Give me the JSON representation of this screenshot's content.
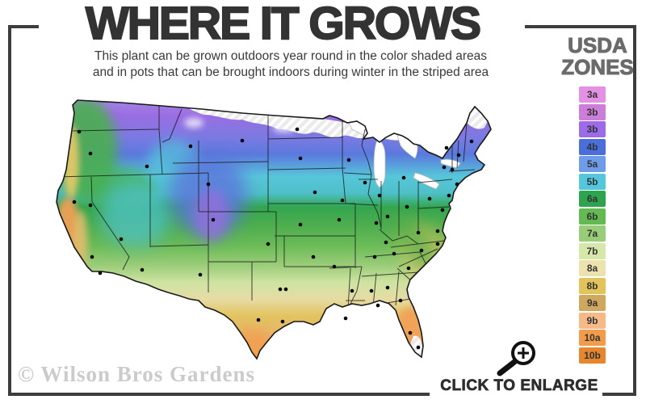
{
  "header": {
    "title": "WHERE IT GROWS",
    "subtitle_line1": "This plant can be grown outdoors year round in the color shaded areas",
    "subtitle_line2": "and in pots that can be brought indoors during winter in the striped area"
  },
  "legend": {
    "title_line1": "USDA",
    "title_line2": "ZONES",
    "zones": [
      {
        "label": "3a",
        "color": "#e391e3"
      },
      {
        "label": "3b",
        "color": "#cd7ed8"
      },
      {
        "label": "3b",
        "color": "#9c6bea"
      },
      {
        "label": "4b",
        "color": "#4a6edb"
      },
      {
        "label": "5a",
        "color": "#6f9ce9"
      },
      {
        "label": "5b",
        "color": "#54c7dd"
      },
      {
        "label": "6a",
        "color": "#2fa44f"
      },
      {
        "label": "6b",
        "color": "#64ba52"
      },
      {
        "label": "7a",
        "color": "#99cc78"
      },
      {
        "label": "7b",
        "color": "#d6e7aa"
      },
      {
        "label": "8a",
        "color": "#ece2ad"
      },
      {
        "label": "8b",
        "color": "#e3c35c"
      },
      {
        "label": "9a",
        "color": "#cfa75f"
      },
      {
        "label": "9b",
        "color": "#f5ba88"
      },
      {
        "label": "10a",
        "color": "#f09c4a"
      },
      {
        "label": "10b",
        "color": "#e6862f"
      }
    ]
  },
  "footer": {
    "click_to_enlarge": "CLICK TO ENLARGE",
    "watermark": "© Wilson Bros Gardens"
  },
  "colors": {
    "frame": "#3d3d3d",
    "title_text": "#333333",
    "legend_title_text": "#6b6b6b",
    "striped_area": "#ebebeb"
  }
}
